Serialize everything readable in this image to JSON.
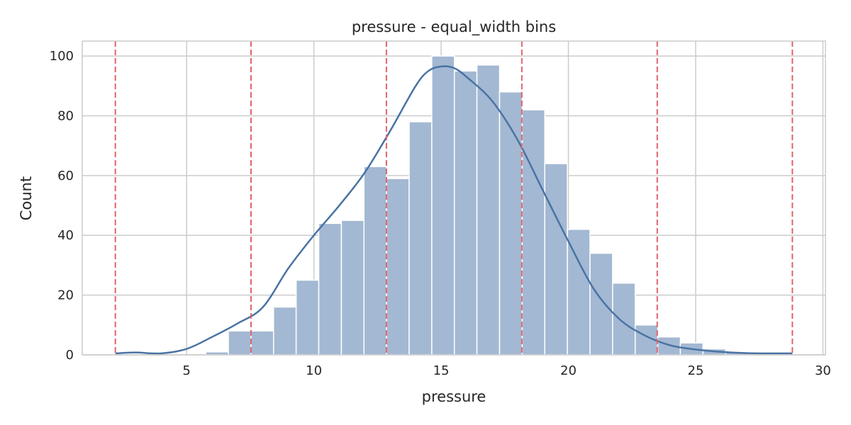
{
  "chart_data": {
    "type": "bar",
    "title": "pressure - equal_width bins",
    "xlabel": "pressure",
    "ylabel": "Count",
    "xlim": [
      0.9,
      30.1
    ],
    "ylim": [
      0,
      105
    ],
    "x_ticks": [
      5,
      10,
      15,
      20,
      25,
      30
    ],
    "y_ticks": [
      0,
      20,
      40,
      60,
      80,
      100
    ],
    "grid": true,
    "legend": "none",
    "histogram": {
      "bin_start": 2.2,
      "bin_width": 0.888,
      "counts": [
        0,
        0,
        0,
        0,
        1,
        8,
        8,
        16,
        25,
        44,
        45,
        63,
        59,
        78,
        100,
        95,
        97,
        88,
        82,
        64,
        42,
        34,
        24,
        10,
        6,
        4,
        2,
        1,
        0,
        0
      ]
    },
    "kde": {
      "x": [
        2.2,
        3.0,
        4.0,
        5.0,
        6.0,
        7.0,
        8.0,
        9.0,
        10.0,
        11.0,
        12.0,
        13.0,
        14.0,
        14.5,
        15.0,
        15.5,
        16.0,
        17.0,
        18.0,
        19.0,
        20.0,
        21.0,
        22.0,
        23.0,
        24.0,
        25.0,
        26.0,
        27.0,
        28.0,
        28.8
      ],
      "y": [
        0.5,
        0.8,
        0.5,
        2.0,
        6.0,
        10.5,
        16.0,
        29.0,
        40.0,
        50.0,
        61.0,
        75.0,
        90.0,
        95.0,
        96.5,
        96.0,
        93.0,
        85.0,
        72.0,
        55.0,
        38.0,
        22.0,
        12.0,
        6.5,
        3.2,
        1.8,
        1.0,
        0.6,
        0.5,
        0.5
      ]
    },
    "bin_edges": [
      2.2,
      7.53,
      12.85,
      18.17,
      23.49,
      28.8
    ],
    "colors": {
      "bars": "#a3b8d2",
      "kde": "#4a73a3",
      "bin_edges": "#e0636b",
      "grid": "#cccccc",
      "text": "#262626"
    }
  }
}
